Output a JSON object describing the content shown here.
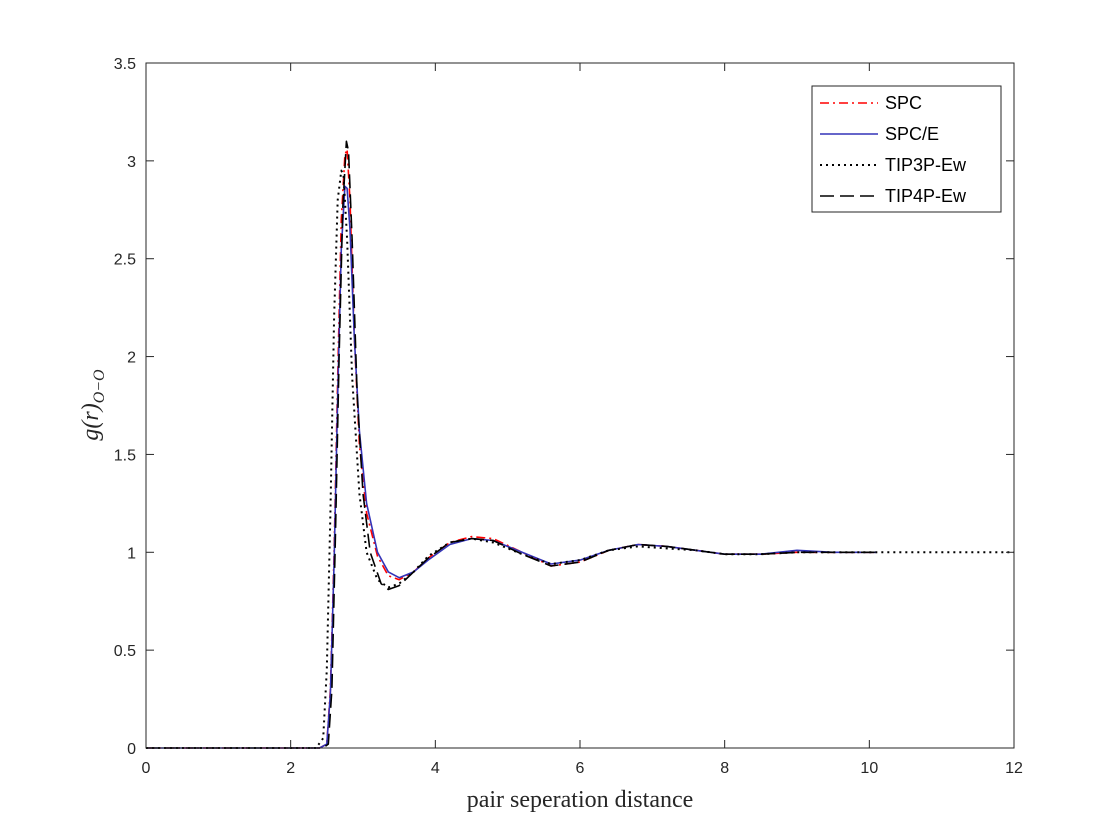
{
  "chart_data": {
    "type": "line",
    "xlabel": "pair seperation distance",
    "ylabel": {
      "base": "g(r)",
      "subscript": "O−O"
    },
    "xlim": [
      0,
      12
    ],
    "ylim": [
      0,
      3.5
    ],
    "xticks": [
      0,
      2,
      4,
      6,
      8,
      10,
      12
    ],
    "xtick_labels": [
      "0",
      "2",
      "4",
      "6",
      "8",
      "10",
      "12"
    ],
    "yticks": [
      0,
      0.5,
      1,
      1.5,
      2,
      2.5,
      3,
      3.5
    ],
    "ytick_labels": [
      "0",
      "0.5",
      "1",
      "1.5",
      "2",
      "2.5",
      "3",
      "3.5"
    ],
    "grid": false,
    "legend_position": "top-right",
    "series": [
      {
        "name": "SPC",
        "color": "#ff0000",
        "style": "dash-dot",
        "x": [
          0,
          2.4,
          2.5,
          2.55,
          2.6,
          2.65,
          2.7,
          2.75,
          2.78,
          2.82,
          2.88,
          2.95,
          3.05,
          3.2,
          3.35,
          3.5,
          3.7,
          3.9,
          4.2,
          4.5,
          4.8,
          5.2,
          5.6,
          6.0,
          6.4,
          6.8,
          7.2,
          7.6,
          8.0,
          8.5,
          9.0,
          9.5,
          10.0,
          10.1
        ],
        "y": [
          0,
          0,
          0.02,
          0.3,
          1.0,
          1.9,
          2.7,
          3.03,
          3.06,
          2.8,
          2.1,
          1.55,
          1.2,
          0.98,
          0.88,
          0.86,
          0.9,
          0.97,
          1.05,
          1.08,
          1.07,
          1.0,
          0.93,
          0.95,
          1.01,
          1.04,
          1.03,
          1.01,
          0.99,
          0.99,
          1.0,
          1.0,
          1.0,
          1.0
        ]
      },
      {
        "name": "SPC/E",
        "color": "#3333b8",
        "style": "solid",
        "x": [
          0,
          2.4,
          2.5,
          2.55,
          2.6,
          2.65,
          2.7,
          2.75,
          2.78,
          2.82,
          2.88,
          2.95,
          3.05,
          3.2,
          3.35,
          3.5,
          3.7,
          3.9,
          4.2,
          4.5,
          4.8,
          5.2,
          5.6,
          6.0,
          6.4,
          6.8,
          7.2,
          7.6,
          8.0,
          8.5,
          9.0,
          9.5,
          10.0,
          10.1
        ],
        "y": [
          0,
          0,
          0.02,
          0.28,
          0.95,
          1.8,
          2.55,
          2.87,
          2.86,
          2.65,
          2.1,
          1.62,
          1.25,
          1.0,
          0.9,
          0.87,
          0.9,
          0.96,
          1.04,
          1.07,
          1.06,
          1.0,
          0.94,
          0.96,
          1.01,
          1.04,
          1.03,
          1.01,
          0.99,
          0.99,
          1.01,
          1.0,
          1.0,
          1.0
        ]
      },
      {
        "name": "TIP3P-Ew",
        "color": "#000000",
        "style": "dotted",
        "x": [
          0,
          2.35,
          2.45,
          2.5,
          2.55,
          2.6,
          2.65,
          2.7,
          2.73,
          2.78,
          2.85,
          2.95,
          3.05,
          3.2,
          3.35,
          3.5,
          3.7,
          3.9,
          4.2,
          4.5,
          4.8,
          5.2,
          5.6,
          6.0,
          6.4,
          6.8,
          7.2,
          7.6,
          8.0,
          8.5,
          9.0,
          9.5,
          10.0,
          10.5,
          11.0,
          11.5,
          12.0
        ],
        "y": [
          0,
          0,
          0.05,
          0.4,
          1.2,
          2.2,
          2.8,
          2.95,
          2.93,
          2.6,
          1.9,
          1.3,
          1.0,
          0.86,
          0.82,
          0.84,
          0.9,
          0.98,
          1.05,
          1.07,
          1.05,
          0.99,
          0.94,
          0.96,
          1.01,
          1.03,
          1.02,
          1.01,
          0.99,
          0.99,
          1.0,
          1.0,
          1.0,
          1.0,
          1.0,
          1.0,
          1.0
        ]
      },
      {
        "name": "TIP4P-Ew",
        "color": "#000000",
        "style": "dashed",
        "x": [
          0,
          2.45,
          2.52,
          2.57,
          2.62,
          2.67,
          2.72,
          2.77,
          2.8,
          2.85,
          2.92,
          3.0,
          3.1,
          3.25,
          3.35,
          3.5,
          3.7,
          3.9,
          4.2,
          4.5,
          4.8,
          5.2,
          5.6,
          6.0,
          6.4,
          6.8,
          7.2,
          7.6,
          8.0,
          8.5,
          9.0,
          9.5,
          10.0,
          10.1
        ],
        "y": [
          0,
          0,
          0.02,
          0.3,
          1.1,
          2.0,
          2.75,
          3.1,
          3.05,
          2.6,
          1.8,
          1.3,
          1.0,
          0.84,
          0.81,
          0.83,
          0.9,
          0.97,
          1.05,
          1.07,
          1.06,
          0.99,
          0.93,
          0.95,
          1.01,
          1.04,
          1.03,
          1.01,
          0.99,
          0.99,
          1.0,
          1.0,
          1.0,
          1.0
        ]
      }
    ]
  }
}
